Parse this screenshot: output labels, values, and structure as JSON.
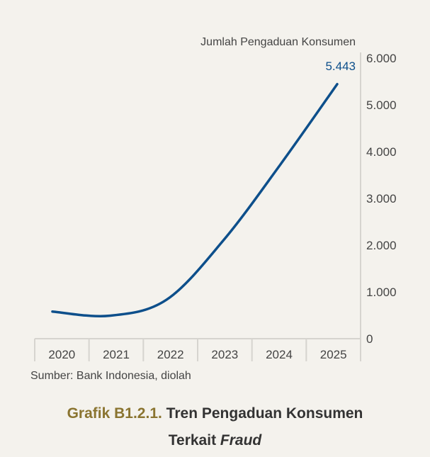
{
  "chart_data": {
    "type": "line",
    "ylabel": "Jumlah Pengaduan Konsumen",
    "categories": [
      "2020",
      "2021",
      "2022",
      "2023",
      "2024",
      "2025"
    ],
    "series": [
      {
        "name": "Jumlah Pengaduan Konsumen",
        "values": [
          580,
          490,
          830,
          2100,
          3720,
          5443
        ]
      }
    ],
    "ylim": [
      0,
      6000
    ],
    "yticks": [
      "0",
      "1.000",
      "2.000",
      "3.000",
      "4.000",
      "5.000",
      "6.000"
    ],
    "data_label": "5.443",
    "line_color": "#0d4f8b"
  },
  "source": "Sumber: Bank Indonesia, diolah",
  "caption": {
    "number": "Grafik B1.2.1.",
    "title_line1": "Tren Pengaduan Konsumen",
    "title_line2_prefix": "Terkait",
    "title_line2_italic": "Fraud"
  }
}
